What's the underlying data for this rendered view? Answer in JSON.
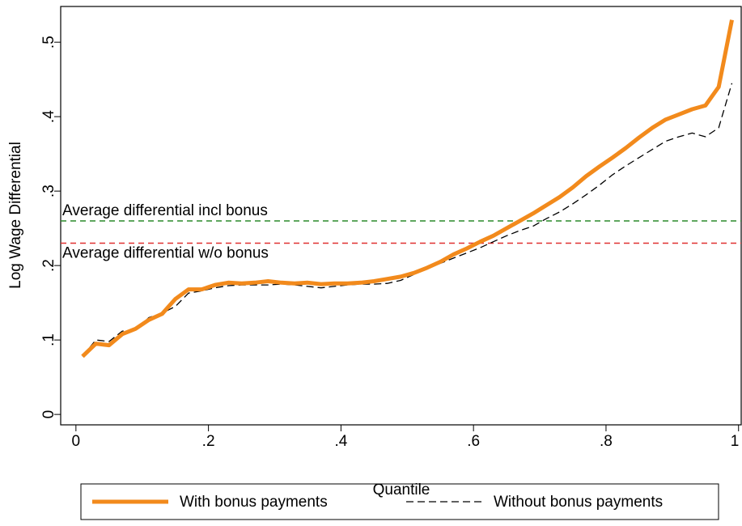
{
  "chart_data": {
    "type": "line",
    "x_label": "Quantile",
    "y_label": "Log Wage Differential",
    "x": [
      0.01,
      0.03,
      0.05,
      0.07,
      0.09,
      0.11,
      0.13,
      0.15,
      0.17,
      0.19,
      0.21,
      0.23,
      0.25,
      0.27,
      0.29,
      0.31,
      0.33,
      0.35,
      0.37,
      0.39,
      0.41,
      0.43,
      0.45,
      0.47,
      0.49,
      0.51,
      0.53,
      0.55,
      0.57,
      0.59,
      0.61,
      0.63,
      0.65,
      0.67,
      0.69,
      0.71,
      0.73,
      0.75,
      0.77,
      0.79,
      0.81,
      0.83,
      0.85,
      0.87,
      0.89,
      0.91,
      0.93,
      0.95,
      0.97,
      0.99
    ],
    "series": [
      {
        "name": "With bonus payments",
        "color": "#f28a1c",
        "style": "solid",
        "values": [
          0.078,
          0.095,
          0.093,
          0.108,
          0.115,
          0.127,
          0.135,
          0.155,
          0.168,
          0.168,
          0.174,
          0.177,
          0.176,
          0.177,
          0.179,
          0.177,
          0.176,
          0.177,
          0.175,
          0.176,
          0.176,
          0.177,
          0.179,
          0.182,
          0.185,
          0.19,
          0.197,
          0.205,
          0.215,
          0.223,
          0.232,
          0.24,
          0.25,
          0.26,
          0.27,
          0.281,
          0.292,
          0.305,
          0.32,
          0.333,
          0.345,
          0.358,
          0.372,
          0.385,
          0.396,
          0.403,
          0.41,
          0.415,
          0.44,
          0.53
        ]
      },
      {
        "name": "Without bonus payments",
        "color": "#000000",
        "style": "dashed",
        "values": [
          0.078,
          0.1,
          0.098,
          0.112,
          0.113,
          0.13,
          0.136,
          0.145,
          0.163,
          0.166,
          0.17,
          0.173,
          0.174,
          0.174,
          0.174,
          0.175,
          0.174,
          0.172,
          0.17,
          0.172,
          0.174,
          0.175,
          0.175,
          0.176,
          0.18,
          0.188,
          0.196,
          0.203,
          0.21,
          0.217,
          0.224,
          0.232,
          0.24,
          0.247,
          0.253,
          0.263,
          0.272,
          0.283,
          0.295,
          0.308,
          0.322,
          0.334,
          0.345,
          0.356,
          0.367,
          0.373,
          0.378,
          0.373,
          0.385,
          0.445
        ]
      }
    ],
    "reference_lines": [
      {
        "value": 0.26,
        "color": "#2a8a2a",
        "label": "Average differential incl bonus",
        "label_side": "above"
      },
      {
        "value": 0.23,
        "color": "#e03030",
        "label": "Average differential w/o bonus",
        "label_side": "below"
      }
    ],
    "xlim": [
      -0.023,
      1.004
    ],
    "xticks": [
      0,
      {
        "value": 0.2,
        "label": ".2"
      },
      {
        "value": 0.4,
        "label": ".4"
      },
      {
        "value": 0.6,
        "label": ".6"
      },
      {
        "value": 0.8,
        "label": ".8"
      },
      1
    ],
    "ylim": [
      -0.014,
      0.548
    ],
    "yticks": [
      0,
      {
        "value": 0.1,
        "label": ".1"
      },
      {
        "value": 0.2,
        "label": ".2"
      },
      {
        "value": 0.3,
        "label": ".3"
      },
      {
        "value": 0.4,
        "label": ".4"
      },
      {
        "value": 0.5,
        "label": ".5"
      }
    ],
    "legend": "bottom"
  }
}
